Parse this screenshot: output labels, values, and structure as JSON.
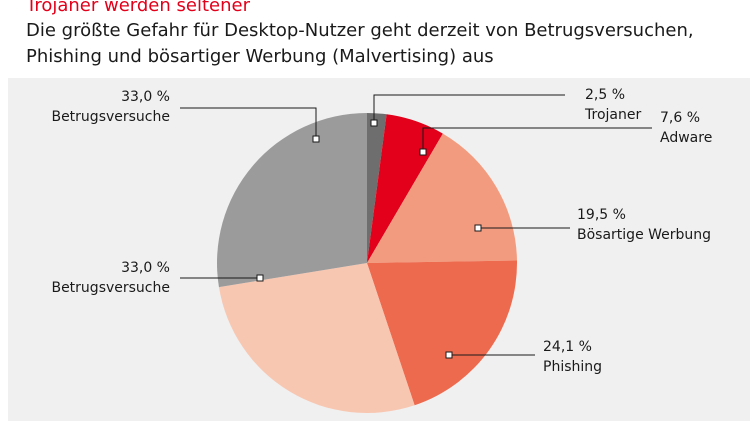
{
  "chart_data": {
    "type": "pie",
    "title": "Trojaner werden seltener",
    "subtitle": [
      "Die größte Gefahr für Desktop-Nutzer geht derzeit von Betrugsversuchen,",
      "Phishing und bösartiger Werbung (Malvertising) aus"
    ],
    "categories": [
      "Trojaner",
      "Adware",
      "Bösartige Werbung",
      "Phishing",
      "Betrugsversuche",
      "Betrugsversuche"
    ],
    "values": [
      2.5,
      7.6,
      19.5,
      24.1,
      33.0,
      33.0
    ],
    "value_labels": [
      "2,5 %",
      "7,6 %",
      "19,5 %",
      "24,1 %",
      "33,0 %",
      "33,0 %"
    ],
    "colors": [
      "#6e6e6e",
      "#e2001a",
      "#f39b7e",
      "#ee6a4e",
      "#f8c7b2",
      "#9b9b9b"
    ]
  }
}
